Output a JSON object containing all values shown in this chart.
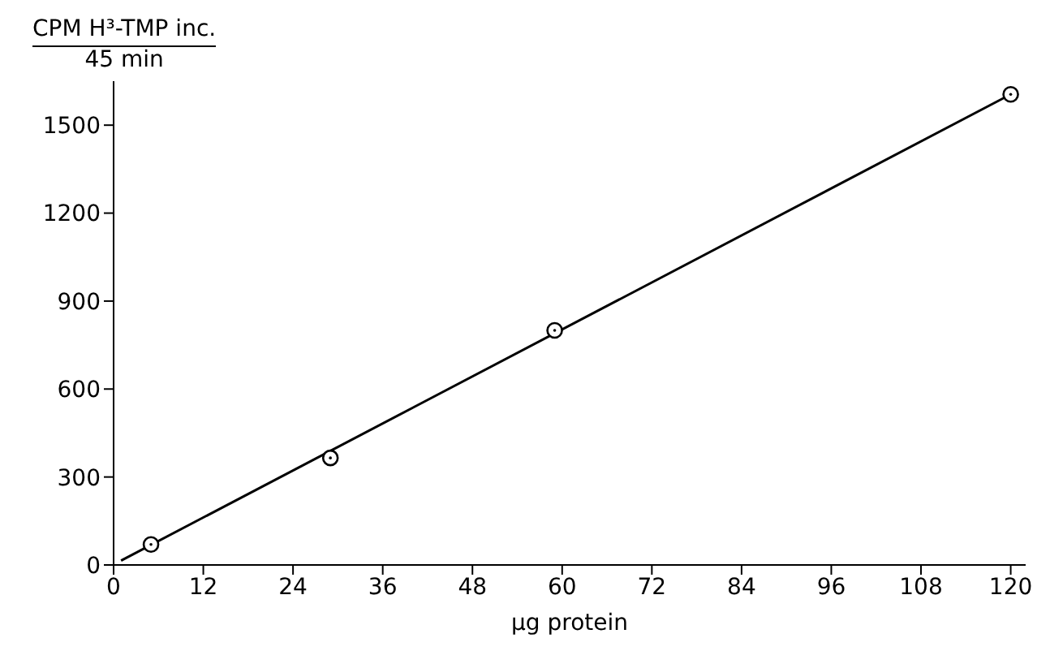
{
  "chart_data": {
    "type": "scatter",
    "xlabel": "μg  protein",
    "ylabel": "CPM H³-TMP inc.\n45 min",
    "series": [
      {
        "color": "#000000",
        "x": [
          5,
          29,
          59,
          120
        ],
        "values": [
          70,
          365,
          800,
          1605
        ],
        "marker": "circle"
      },
      {
        "type": "line",
        "color": "#000000",
        "x": [
          1,
          120
        ],
        "values": [
          15,
          1605
        ],
        "marker": "none"
      }
    ],
    "xlim": [
      0,
      122
    ],
    "xticks": [
      0,
      12,
      24,
      36,
      48,
      60,
      72,
      84,
      96,
      108,
      120
    ],
    "ylim": [
      0,
      1650
    ],
    "yticks": [
      0,
      300,
      600,
      900,
      1200,
      1500
    ],
    "grid": false
  }
}
